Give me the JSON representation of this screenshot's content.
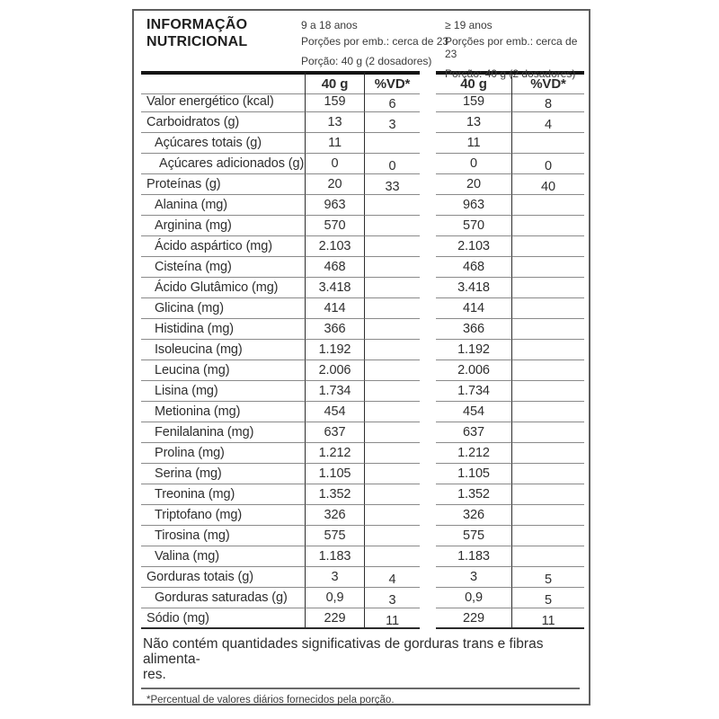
{
  "label": {
    "title_line1": "INFORMAÇÃO",
    "title_line2": "NUTRICIONAL",
    "groups": [
      {
        "age": "9 a 18 anos",
        "servings": "Porções por emb.: cerca de 23",
        "portion": "Porção: 40 g (2 dosadores)",
        "col_qty": "40 g",
        "col_dv": "%VD*"
      },
      {
        "age": "≥ 19 anos",
        "servings": "Porções por emb.: cerca de 23",
        "portion": "Porção: 40 g (2 dosadores)",
        "col_qty": "40 g",
        "col_dv": "%VD*"
      }
    ],
    "rows": [
      {
        "label": "Valor energético (kcal)",
        "indent": 0,
        "values": [
          "159",
          "6",
          "159",
          "8"
        ]
      },
      {
        "label": "Carboidratos (g)",
        "indent": 0,
        "values": [
          "13",
          "3",
          "13",
          "4"
        ]
      },
      {
        "label": "Açúcares totais (g)",
        "indent": 1,
        "values": [
          "11",
          "",
          "11",
          ""
        ]
      },
      {
        "label": "Açúcares adicionados (g)",
        "indent": 2,
        "values": [
          "0",
          "0",
          "0",
          "0"
        ]
      },
      {
        "label": "Proteínas (g)",
        "indent": 0,
        "values": [
          "20",
          "33",
          "20",
          "40"
        ]
      },
      {
        "label": "Alanina (mg)",
        "indent": 1,
        "values": [
          "963",
          "",
          "963",
          ""
        ]
      },
      {
        "label": "Arginina (mg)",
        "indent": 1,
        "values": [
          "570",
          "",
          "570",
          ""
        ]
      },
      {
        "label": "Ácido aspártico (mg)",
        "indent": 1,
        "values": [
          "2.103",
          "",
          "2.103",
          ""
        ]
      },
      {
        "label": "Cisteína (mg)",
        "indent": 1,
        "values": [
          "468",
          "",
          "468",
          ""
        ]
      },
      {
        "label": "Ácido Glutâmico (mg)",
        "indent": 1,
        "values": [
          "3.418",
          "",
          "3.418",
          ""
        ]
      },
      {
        "label": "Glicina (mg)",
        "indent": 1,
        "values": [
          "414",
          "",
          "414",
          ""
        ]
      },
      {
        "label": "Histidina (mg)",
        "indent": 1,
        "values": [
          "366",
          "",
          "366",
          ""
        ]
      },
      {
        "label": "Isoleucina (mg)",
        "indent": 1,
        "values": [
          "1.192",
          "",
          "1.192",
          ""
        ]
      },
      {
        "label": "Leucina (mg)",
        "indent": 1,
        "values": [
          "2.006",
          "",
          "2.006",
          ""
        ]
      },
      {
        "label": "Lisina (mg)",
        "indent": 1,
        "values": [
          "1.734",
          "",
          "1.734",
          ""
        ]
      },
      {
        "label": "Metionina (mg)",
        "indent": 1,
        "values": [
          "454",
          "",
          "454",
          ""
        ]
      },
      {
        "label": "Fenilalanina (mg)",
        "indent": 1,
        "values": [
          "637",
          "",
          "637",
          ""
        ]
      },
      {
        "label": "Prolina (mg)",
        "indent": 1,
        "values": [
          "1.212",
          "",
          "1.212",
          ""
        ]
      },
      {
        "label": "Serina (mg)",
        "indent": 1,
        "values": [
          "1.105",
          "",
          "1.105",
          ""
        ]
      },
      {
        "label": "Treonina (mg)",
        "indent": 1,
        "values": [
          "1.352",
          "",
          "1.352",
          ""
        ]
      },
      {
        "label": "Triptofano (mg)",
        "indent": 1,
        "values": [
          "326",
          "",
          "326",
          ""
        ]
      },
      {
        "label": "Tirosina (mg)",
        "indent": 1,
        "values": [
          "575",
          "",
          "575",
          ""
        ]
      },
      {
        "label": "Valina (mg)",
        "indent": 1,
        "values": [
          "1.183",
          "",
          "1.183",
          ""
        ]
      },
      {
        "label": "Gorduras totais (g)",
        "indent": 0,
        "values": [
          "3",
          "4",
          "3",
          "5"
        ]
      },
      {
        "label": "Gorduras saturadas (g)",
        "indent": 1,
        "values": [
          "0,9",
          "3",
          "0,9",
          "5"
        ]
      },
      {
        "label": "Sódio (mg)",
        "indent": 0,
        "values": [
          "229",
          "11",
          "229",
          "11"
        ]
      }
    ],
    "footer_line1": "Não contém quantidades significativas de gorduras trans e fibras alimenta-",
    "footer_line2": "res.",
    "footnote": "*Percentual de valores diários fornecidos pela porção."
  },
  "colors": {
    "text": "#2e2e2e",
    "grid_line": "#8a8a8a",
    "heavy_line": "#141414",
    "frame_border": "#5f5f5f",
    "background": "#ffffff"
  }
}
